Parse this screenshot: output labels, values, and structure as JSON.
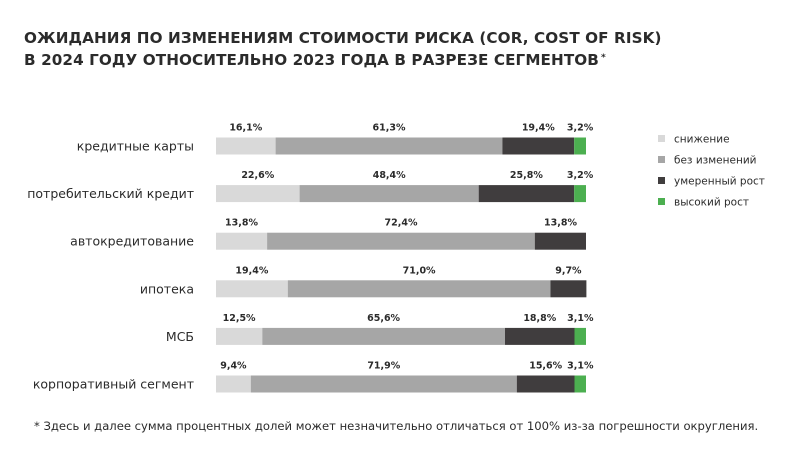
{
  "title": {
    "line1": "ОЖИДАНИЯ ПО ИЗМЕНЕНИЯМ СТОИМОСТИ РИСКА (COR, COST OF RISK)",
    "line2": "В 2024 ГОДУ ОТНОСИТЕЛЬНО 2023 ГОДА В РАЗРЕЗЕ СЕГМЕНТОВ",
    "marker": "*"
  },
  "footnote": "* Здесь и далее сумма процентных долей может незначительно отличаться от 100% из-за погрешности округления.",
  "chart_data": {
    "type": "bar",
    "orientation": "horizontal",
    "stacked": true,
    "grid": false,
    "legend_position": "right",
    "categories": [
      "кредитные карты",
      "потребительский кредит",
      "автокредитование",
      "ипотека",
      "МСБ",
      "корпоративный сегмент"
    ],
    "series": [
      {
        "name": "снижение",
        "color": "#d9d9d9",
        "values": [
          16.1,
          22.6,
          13.8,
          19.4,
          12.5,
          9.4
        ],
        "labels": [
          "16,1%",
          "22,6%",
          "13,8%",
          "19,4%",
          "12,5%",
          "9,4%"
        ]
      },
      {
        "name": "без изменений",
        "color": "#a6a6a6",
        "values": [
          61.3,
          48.4,
          72.4,
          71.0,
          65.6,
          71.9
        ],
        "labels": [
          "61,3%",
          "48,4%",
          "72,4%",
          "71,0%",
          "65,6%",
          "71,9%"
        ]
      },
      {
        "name": "умеренный рост",
        "color": "#403d3e",
        "values": [
          19.4,
          25.8,
          13.8,
          9.7,
          18.8,
          15.6
        ],
        "labels": [
          "19,4%",
          "25,8%",
          "13,8%",
          "9,7%",
          "18,8%",
          "15,6%"
        ]
      },
      {
        "name": "высокий рост",
        "color": "#4caf50",
        "values": [
          3.2,
          3.2,
          0,
          0,
          3.1,
          3.1
        ],
        "labels": [
          "3,2%",
          "3,2%",
          "",
          "",
          "3,1%",
          "3,1%"
        ]
      }
    ]
  }
}
